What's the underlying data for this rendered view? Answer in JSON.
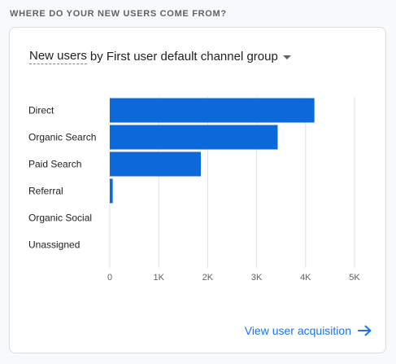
{
  "section_title": "WHERE DO YOUR NEW USERS COME FROM?",
  "card": {
    "metric_label": "New users",
    "dimension_label": "by First user default channel group",
    "footer_link": "View user acquisition"
  },
  "colors": {
    "bar": "#0b69d9",
    "grid": "#e0e0e0",
    "link": "#1a73e8"
  },
  "chart_data": {
    "type": "bar",
    "orientation": "horizontal",
    "categories": [
      "Direct",
      "Organic Search",
      "Paid Search",
      "Referral",
      "Organic Social",
      "Unassigned"
    ],
    "values": [
      4180,
      3430,
      1860,
      60,
      0,
      0
    ],
    "xlim": [
      0,
      5000
    ],
    "ticks": [
      0,
      1000,
      2000,
      3000,
      4000,
      5000
    ],
    "tick_labels": [
      "0",
      "1K",
      "2K",
      "3K",
      "4K",
      "5K"
    ],
    "grid": true
  }
}
